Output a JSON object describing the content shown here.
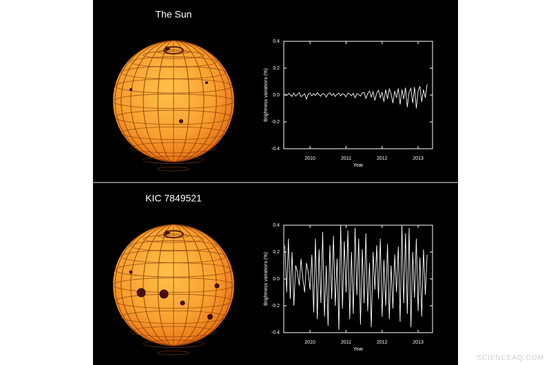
{
  "chart_data": [
    {
      "type": "line",
      "title": "The Sun",
      "xlabel": "Year",
      "ylabel": "Brightness variations (%)",
      "xlim": [
        2009.27,
        2013.4
      ],
      "xticks": [
        2010,
        2011,
        2012,
        2013
      ],
      "ylim": [
        -0.4,
        0.4
      ],
      "yticks": [
        -0.4,
        -0.2,
        {
          "value": 0,
          "label": "0.0"
        },
        0.2,
        0.4
      ],
      "series": [
        {
          "color": "#ffffff",
          "x": [
            2009.3,
            2009.35,
            2009.4,
            2009.45,
            2009.5,
            2009.55,
            2009.6,
            2009.65,
            2009.7,
            2009.75,
            2009.8,
            2009.85,
            2009.9,
            2009.95,
            2010.0,
            2010.05,
            2010.1,
            2010.15,
            2010.2,
            2010.25,
            2010.3,
            2010.35,
            2010.4,
            2010.45,
            2010.5,
            2010.55,
            2010.6,
            2010.65,
            2010.7,
            2010.75,
            2010.8,
            2010.85,
            2010.9,
            2010.95,
            2011.0,
            2011.05,
            2011.1,
            2011.15,
            2011.2,
            2011.25,
            2011.3,
            2011.35,
            2011.4,
            2011.45,
            2011.5,
            2011.55,
            2011.6,
            2011.65,
            2011.7,
            2011.75,
            2011.8,
            2011.85,
            2011.9,
            2011.95,
            2012.0,
            2012.05,
            2012.1,
            2012.15,
            2012.2,
            2012.25,
            2012.3,
            2012.35,
            2012.4,
            2012.45,
            2012.5,
            2012.55,
            2012.6,
            2012.65,
            2012.7,
            2012.75,
            2012.8,
            2012.85,
            2012.9,
            2012.95,
            2013.0,
            2013.05,
            2013.1,
            2013.15,
            2013.2,
            2013.25
          ],
          "values": [
            0.01,
            -0.005,
            0.012,
            0.003,
            -0.01,
            0.015,
            -0.008,
            0.004,
            0.018,
            -0.012,
            -0.002,
            0.01,
            -0.03,
            0.008,
            0.014,
            -0.006,
            0.011,
            -0.004,
            0.016,
            0.002,
            -0.009,
            0.013,
            0.005,
            -0.015,
            0.009,
            0.017,
            -0.003,
            0.012,
            -0.011,
            0.006,
            0.014,
            -0.007,
            0.01,
            0.003,
            -0.013,
            0.015,
            0.008,
            -0.005,
            0.012,
            -0.02,
            0.011,
            0.004,
            -0.008,
            0.016,
            0.02,
            -0.025,
            0.01,
            0.03,
            -0.015,
            0.025,
            -0.04,
            0.015,
            0.035,
            -0.02,
            0.02,
            -0.05,
            0.04,
            -0.03,
            0.045,
            0.01,
            -0.06,
            0.03,
            -0.02,
            0.05,
            -0.07,
            0.04,
            -0.03,
            0.055,
            -0.09,
            0.02,
            0.05,
            -0.06,
            0.06,
            -0.1,
            0.03,
            0.065,
            -0.05,
            0.04,
            -0.02,
            0.08
          ]
        }
      ]
    },
    {
      "type": "line",
      "title": "KIC 7849521",
      "xlabel": "Year",
      "ylabel": "Brightness variations (%)",
      "xlim": [
        2009.27,
        2013.4
      ],
      "xticks": [
        2010,
        2011,
        2012,
        2013
      ],
      "ylim": [
        -0.4,
        0.4
      ],
      "yticks": [
        -0.4,
        -0.2,
        {
          "value": 0,
          "label": "0.0"
        },
        0.2,
        0.4
      ],
      "series": [
        {
          "color": "#ffffff",
          "x": [
            2009.3,
            2009.35,
            2009.4,
            2009.45,
            2009.5,
            2009.55,
            2009.6,
            2009.65,
            2009.7,
            2009.75,
            2009.8,
            2009.85,
            2009.9,
            2009.95,
            2010.0,
            2010.05,
            2010.1,
            2010.15,
            2010.2,
            2010.25,
            2010.3,
            2010.35,
            2010.4,
            2010.45,
            2010.5,
            2010.55,
            2010.6,
            2010.65,
            2010.7,
            2010.75,
            2010.8,
            2010.85,
            2010.9,
            2010.95,
            2011.0,
            2011.05,
            2011.1,
            2011.15,
            2011.2,
            2011.25,
            2011.3,
            2011.35,
            2011.4,
            2011.45,
            2011.5,
            2011.55,
            2011.6,
            2011.65,
            2011.7,
            2011.75,
            2011.8,
            2011.85,
            2011.9,
            2011.95,
            2012.0,
            2012.05,
            2012.1,
            2012.15,
            2012.2,
            2012.25,
            2012.3,
            2012.35,
            2012.4,
            2012.45,
            2012.5,
            2012.55,
            2012.6,
            2012.65,
            2012.7,
            2012.75,
            2012.8,
            2012.85,
            2012.9,
            2012.95,
            2013.0,
            2013.05,
            2013.1,
            2013.15,
            2013.2,
            2013.25
          ],
          "values": [
            0.25,
            -0.1,
            0.3,
            -0.15,
            0.2,
            -0.2,
            0.1,
            0.05,
            -0.05,
            0.15,
            0.0,
            -0.1,
            0.12,
            0.05,
            -0.08,
            0.18,
            -0.25,
            0.3,
            -0.3,
            0.22,
            -0.18,
            0.35,
            -0.28,
            0.1,
            -0.35,
            0.25,
            -0.15,
            0.32,
            -0.2,
            0.15,
            -0.38,
            0.4,
            -0.22,
            0.28,
            -0.1,
            0.36,
            -0.3,
            0.2,
            -0.26,
            0.38,
            -0.12,
            0.3,
            -0.34,
            0.22,
            -0.18,
            0.34,
            -0.24,
            0.12,
            -0.36,
            0.2,
            -0.08,
            0.25,
            -0.15,
            0.3,
            -0.28,
            0.14,
            -0.2,
            0.26,
            -0.3,
            0.1,
            -0.22,
            0.18,
            -0.1,
            0.24,
            -0.32,
            0.4,
            -0.18,
            0.34,
            -0.26,
            0.38,
            -0.36,
            0.2,
            -0.14,
            0.3,
            -0.24,
            0.16,
            -0.28,
            0.22,
            -0.12,
            0.18
          ]
        }
      ]
    }
  ],
  "watermark": "SCIENCEAQ.COM"
}
